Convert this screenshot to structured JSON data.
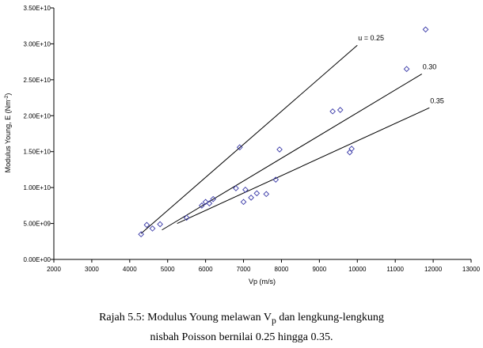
{
  "chart_data": {
    "type": "scatter",
    "xlabel": "Vp (m/s)",
    "ylabel_main": "Modulus Young, E (Nm",
    "ylabel_sup": "-2",
    "ylabel_end": ")",
    "xlim": [
      2000,
      13000
    ],
    "ylim": [
      0,
      35000000000.0
    ],
    "x_ticks": [
      2000,
      3000,
      4000,
      5000,
      6000,
      7000,
      8000,
      9000,
      10000,
      11000,
      12000,
      13000
    ],
    "y_ticks": [
      {
        "v": 0,
        "label": "0.00E+00"
      },
      {
        "v": 5000000000.0,
        "label": "5.00E+09"
      },
      {
        "v": 10000000000.0,
        "label": "1.00E+10"
      },
      {
        "v": 15000000000.0,
        "label": "1.50E+10"
      },
      {
        "v": 20000000000.0,
        "label": "2.00E+10"
      },
      {
        "v": 25000000000.0,
        "label": "2.50E+10"
      },
      {
        "v": 30000000000.0,
        "label": "3.00E+10"
      },
      {
        "v": 35000000000.0,
        "label": "3.50E+10"
      }
    ],
    "grid": false,
    "marker": "diamond",
    "marker_color": "#3a3aa8",
    "points": [
      {
        "x": 4300,
        "y": 3500000000.0
      },
      {
        "x": 4450,
        "y": 4800000000.0
      },
      {
        "x": 4600,
        "y": 4300000000.0
      },
      {
        "x": 4800,
        "y": 4900000000.0
      },
      {
        "x": 5500,
        "y": 5800000000.0
      },
      {
        "x": 5900,
        "y": 7500000000.0
      },
      {
        "x": 6000,
        "y": 8000000000.0
      },
      {
        "x": 6100,
        "y": 7800000000.0
      },
      {
        "x": 6200,
        "y": 8400000000.0
      },
      {
        "x": 6800,
        "y": 9900000000.0
      },
      {
        "x": 6900,
        "y": 15600000000.0
      },
      {
        "x": 7000,
        "y": 8000000000.0
      },
      {
        "x": 7050,
        "y": 9700000000.0
      },
      {
        "x": 7200,
        "y": 8600000000.0
      },
      {
        "x": 7350,
        "y": 9200000000.0
      },
      {
        "x": 7600,
        "y": 9100000000.0
      },
      {
        "x": 7850,
        "y": 11100000000.0
      },
      {
        "x": 7950,
        "y": 15300000000.0
      },
      {
        "x": 9350,
        "y": 20600000000.0
      },
      {
        "x": 9550,
        "y": 20800000000.0
      },
      {
        "x": 9800,
        "y": 14900000000.0
      },
      {
        "x": 9850,
        "y": 15400000000.0
      },
      {
        "x": 11300,
        "y": 26500000000.0
      },
      {
        "x": 11800,
        "y": 32000000000.0
      }
    ],
    "lines": [
      {
        "label": "u = 0.25",
        "x1": 4300,
        "y1": 3600000000.0,
        "x2": 10000,
        "y2": 29800000000.0
      },
      {
        "label": "0.30",
        "x1": 4850,
        "y1": 4100000000.0,
        "x2": 11700,
        "y2": 25800000000.0
      },
      {
        "label": "0.35",
        "x1": 5250,
        "y1": 5000000000.0,
        "x2": 11900,
        "y2": 21100000000.0
      }
    ]
  },
  "caption": {
    "prefix": "Rajah 5.5:  Modulus Young melawan V",
    "sub": "p",
    "suffix": " dan lengkung-lengkung",
    "line2": "nisbah Poisson bernilai 0.25 hingga 0.35."
  }
}
